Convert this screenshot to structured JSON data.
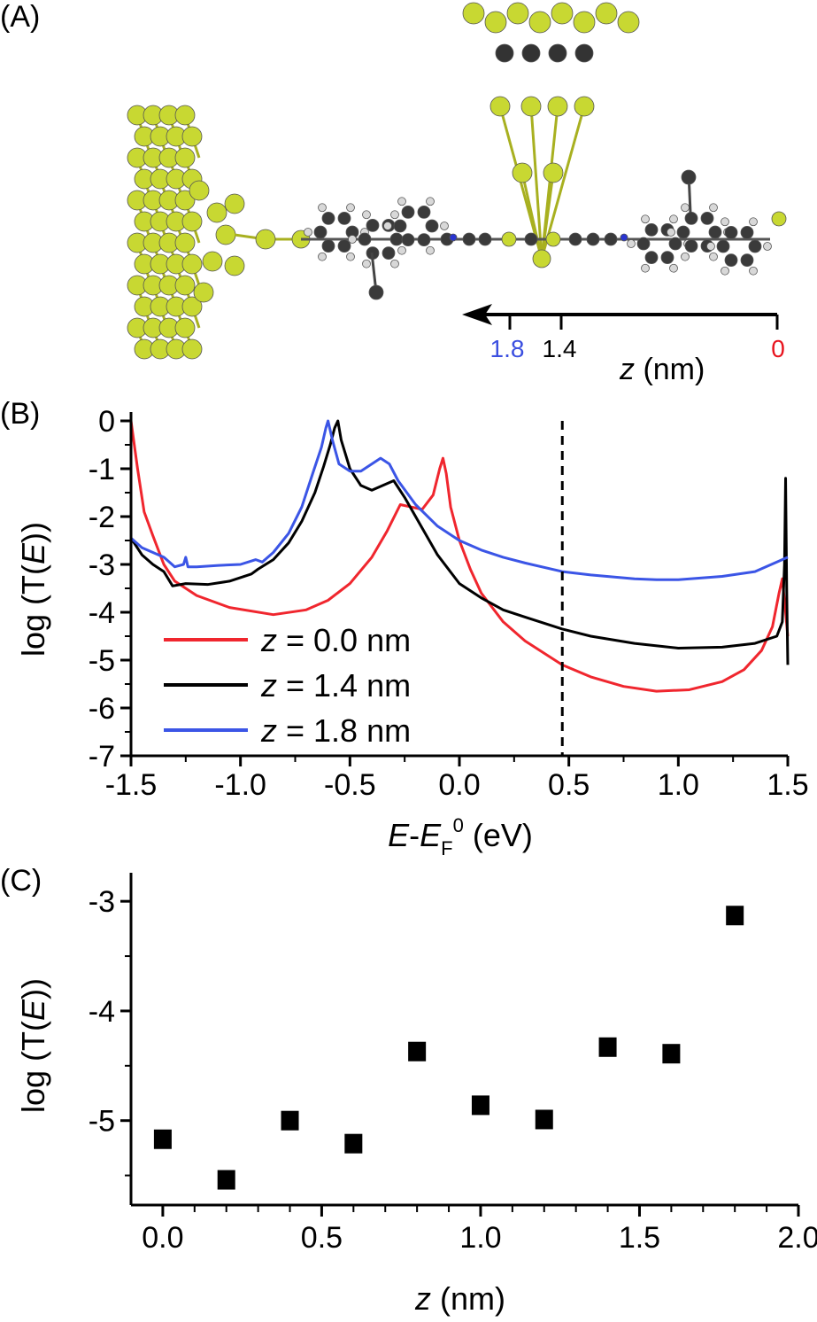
{
  "panel_a": {
    "label": "(A)",
    "axis": {
      "var": "z",
      "unit": " (nm)",
      "ticks": [
        {
          "label": "1.8",
          "color": "#3b4fe0",
          "z": 1.8
        },
        {
          "label": "1.4",
          "color": "#000000",
          "z": 1.4
        },
        {
          "label": "0",
          "color": "#e8141e",
          "z": 0
        }
      ]
    },
    "colors": {
      "gold": "#c8d832",
      "carbon": "#3a3a3a",
      "hydrogen": "#d8d8d8",
      "nitrogen": "#2a35d0"
    }
  },
  "chart_data": [
    {
      "panel": "(B)",
      "type": "line",
      "xlabel": {
        "e1": "E",
        "dash": "-",
        "e2": "E",
        "sub": "F",
        "sup": "0",
        "unit": " (eV)"
      },
      "ylabel": {
        "pre": "log (T(",
        "var": "E",
        "post": "))"
      },
      "xlim": [
        -1.5,
        1.5
      ],
      "ylim": [
        -7,
        0
      ],
      "xticks": [
        "-1.5",
        "-1.0",
        "-0.5",
        "0.0",
        "0.5",
        "1.0",
        "1.5"
      ],
      "yticks": [
        "0",
        "-1",
        "-2",
        "-3",
        "-4",
        "-5",
        "-6",
        "-7"
      ],
      "vline_dashed_x": 0.47,
      "legend_position": "bottom-left",
      "series": [
        {
          "name": "z = 0.0 nm",
          "var": "z",
          "rest": " = 0.0 nm",
          "color": "#f0262e",
          "x": [
            -1.5,
            -1.47,
            -1.44,
            -1.4,
            -1.35,
            -1.3,
            -1.2,
            -1.05,
            -0.85,
            -0.7,
            -0.6,
            -0.5,
            -0.4,
            -0.33,
            -0.27,
            -0.22,
            -0.17,
            -0.12,
            -0.09,
            -0.075,
            -0.06,
            -0.04,
            0.0,
            0.05,
            0.1,
            0.2,
            0.3,
            0.47,
            0.6,
            0.75,
            0.9,
            1.05,
            1.2,
            1.3,
            1.38,
            1.43,
            1.46,
            1.475,
            1.49,
            1.5
          ],
          "y": [
            0,
            -1.0,
            -1.9,
            -2.4,
            -3.0,
            -3.35,
            -3.65,
            -3.9,
            -4.05,
            -3.95,
            -3.75,
            -3.4,
            -2.85,
            -2.3,
            -1.75,
            -1.8,
            -1.85,
            -1.55,
            -1.0,
            -0.78,
            -1.1,
            -1.8,
            -2.5,
            -3.1,
            -3.6,
            -4.2,
            -4.6,
            -5.1,
            -5.35,
            -5.55,
            -5.65,
            -5.62,
            -5.45,
            -5.2,
            -4.8,
            -4.3,
            -3.6,
            -3.3,
            -4.0,
            -4.5
          ]
        },
        {
          "name": "z = 1.4 nm",
          "var": "z",
          "rest": " = 1.4 nm",
          "color": "#000000",
          "x": [
            -1.5,
            -1.45,
            -1.4,
            -1.35,
            -1.31,
            -1.25,
            -1.15,
            -1.05,
            -0.95,
            -0.92,
            -0.85,
            -0.78,
            -0.72,
            -0.66,
            -0.62,
            -0.59,
            -0.57,
            -0.555,
            -0.54,
            -0.5,
            -0.45,
            -0.4,
            -0.35,
            -0.3,
            -0.25,
            -0.2,
            -0.1,
            0.0,
            0.1,
            0.2,
            0.3,
            0.47,
            0.6,
            0.8,
            1.0,
            1.2,
            1.35,
            1.45,
            1.475,
            1.485,
            1.49,
            1.495,
            1.5
          ],
          "y": [
            -2.45,
            -2.8,
            -3.0,
            -3.15,
            -3.45,
            -3.4,
            -3.42,
            -3.35,
            -3.2,
            -3.1,
            -2.9,
            -2.55,
            -2.1,
            -1.5,
            -0.95,
            -0.5,
            -0.15,
            0,
            -0.4,
            -1.0,
            -1.35,
            -1.45,
            -1.35,
            -1.25,
            -1.6,
            -2.0,
            -2.8,
            -3.4,
            -3.7,
            -3.95,
            -4.1,
            -4.35,
            -4.5,
            -4.65,
            -4.75,
            -4.73,
            -4.65,
            -4.5,
            -4.2,
            -3.0,
            -1.2,
            -3.5,
            -5.1
          ]
        },
        {
          "name": "z = 1.8 nm",
          "var": "z",
          "rest": " = 1.8 nm",
          "color": "#3b55e6",
          "x": [
            -1.5,
            -1.45,
            -1.4,
            -1.35,
            -1.3,
            -1.26,
            -1.25,
            -1.24,
            -1.2,
            -1.1,
            -1.0,
            -0.93,
            -0.9,
            -0.85,
            -0.78,
            -0.72,
            -0.67,
            -0.63,
            -0.61,
            -0.6,
            -0.58,
            -0.55,
            -0.5,
            -0.45,
            -0.4,
            -0.36,
            -0.32,
            -0.28,
            -0.2,
            -0.1,
            0.0,
            0.1,
            0.2,
            0.3,
            0.47,
            0.6,
            0.8,
            0.9,
            1.0,
            1.2,
            1.35,
            1.5
          ],
          "y": [
            -2.45,
            -2.65,
            -2.75,
            -2.85,
            -3.05,
            -3.0,
            -2.85,
            -3.05,
            -3.05,
            -3.02,
            -3.0,
            -2.9,
            -2.95,
            -2.75,
            -2.35,
            -1.8,
            -1.1,
            -0.55,
            -0.15,
            0,
            -0.4,
            -0.9,
            -1.05,
            -1.05,
            -0.9,
            -0.78,
            -0.9,
            -1.25,
            -1.75,
            -2.2,
            -2.5,
            -2.7,
            -2.85,
            -2.97,
            -3.15,
            -3.22,
            -3.3,
            -3.32,
            -3.32,
            -3.25,
            -3.15,
            -2.85
          ]
        }
      ]
    },
    {
      "panel": "(C)",
      "type": "scatter",
      "xlabel": {
        "var": "z",
        "unit": " (nm)"
      },
      "ylabel": {
        "pre": "log (T(",
        "var": "E",
        "post": "))"
      },
      "xlim": [
        -0.1,
        2.0
      ],
      "ylim": [
        -5.77,
        -2.74
      ],
      "xticks": [
        "0.0",
        "0.5",
        "1.0",
        "1.5",
        "2.0"
      ],
      "yticks": [
        "-3",
        "-4",
        "-5"
      ],
      "marker": "square",
      "color": "#000000",
      "x": [
        0.0,
        0.2,
        0.4,
        0.6,
        0.8,
        1.0,
        1.2,
        1.4,
        1.6,
        1.8
      ],
      "y": [
        -5.17,
        -5.54,
        -5.0,
        -5.21,
        -4.37,
        -4.86,
        -4.99,
        -4.33,
        -4.39,
        -3.13
      ]
    }
  ]
}
